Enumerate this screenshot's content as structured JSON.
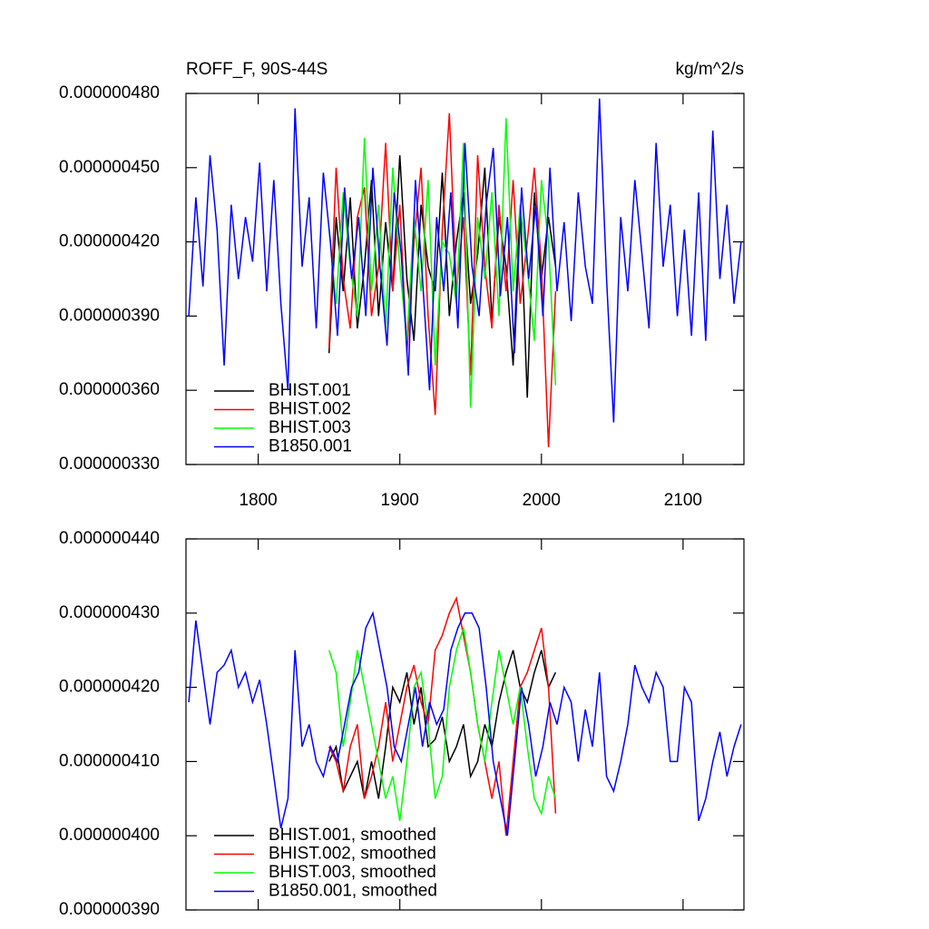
{
  "chart_data": [
    {
      "type": "line",
      "title": "ROFF_F, 90S-44S",
      "units": "kg/m^2/s",
      "legend": "lower left",
      "xtick_labels": true,
      "xlim": [
        1749,
        2143
      ],
      "ylim": [
        3.3e-07,
        4.8e-07
      ],
      "xticks": [
        1800,
        1900,
        2000,
        2100
      ],
      "yticks": [
        {
          "value": 3.3e-07,
          "label": "0.000000330"
        },
        {
          "value": 3.6e-07,
          "label": "0.000000360"
        },
        {
          "value": 3.9e-07,
          "label": "0.000000390"
        },
        {
          "value": 4.2e-07,
          "label": "0.000000420"
        },
        {
          "value": 4.5e-07,
          "label": "0.000000450"
        },
        {
          "value": 4.8e-07,
          "label": "0.000000480"
        }
      ],
      "series": [
        {
          "name": "BHIST.001",
          "color": "#000000",
          "x": [
            1850,
            1855,
            1860,
            1865,
            1870,
            1875,
            1880,
            1885,
            1890,
            1895,
            1900,
            1905,
            1910,
            1915,
            1920,
            1925,
            1930,
            1935,
            1940,
            1945,
            1950,
            1955,
            1960,
            1965,
            1970,
            1975,
            1980,
            1985,
            1990,
            1995,
            2000,
            2005,
            2010
          ],
          "values": [
            3.75e-07,
            4.3e-07,
            4e-07,
            4.38e-07,
            3.85e-07,
            4.1e-07,
            4.45e-07,
            3.9e-07,
            4.28e-07,
            4e-07,
            4.55e-07,
            4.05e-07,
            3.8e-07,
            4.35e-07,
            4.1e-07,
            4e-07,
            4.48e-07,
            3.9e-07,
            4.2e-07,
            4.4e-07,
            3.95e-07,
            4.15e-07,
            4.5e-07,
            3.88e-07,
            4.3e-07,
            4.1e-07,
            3.7e-07,
            4.35e-07,
            3.57e-07,
            4.4e-07,
            4.05e-07,
            4.3e-07,
            4.1e-07
          ]
        },
        {
          "name": "BHIST.002",
          "color": "#ff0000",
          "x": [
            1850,
            1855,
            1860,
            1865,
            1870,
            1875,
            1880,
            1885,
            1890,
            1895,
            1900,
            1905,
            1910,
            1915,
            1920,
            1925,
            1930,
            1935,
            1940,
            1945,
            1950,
            1955,
            1960,
            1965,
            1970,
            1975,
            1980,
            1985,
            1990,
            1995,
            2000,
            2005,
            2010
          ],
          "values": [
            3.77e-07,
            4.5e-07,
            4.05e-07,
            3.85e-07,
            4.3e-07,
            4.42e-07,
            3.9e-07,
            4.1e-07,
            4.6e-07,
            4e-07,
            4.35e-07,
            3.75e-07,
            4.2e-07,
            4.5e-07,
            3.9e-07,
            3.5e-07,
            4.25e-07,
            4.72e-07,
            4e-07,
            4.3e-07,
            3.66e-07,
            4.55e-07,
            4.1e-07,
            3.85e-07,
            4.35e-07,
            4e-07,
            4.45e-07,
            3.95e-07,
            4.2e-07,
            4.5e-07,
            4.1e-07,
            3.37e-07,
            4e-07
          ]
        },
        {
          "name": "BHIST.003",
          "color": "#00ff00",
          "x": [
            1850,
            1855,
            1860,
            1865,
            1870,
            1875,
            1880,
            1885,
            1890,
            1895,
            1900,
            1905,
            1910,
            1915,
            1920,
            1925,
            1930,
            1935,
            1940,
            1945,
            1950,
            1955,
            1960,
            1965,
            1970,
            1975,
            1980,
            1985,
            1990,
            1995,
            2000,
            2005,
            2010
          ],
          "values": [
            4.25e-07,
            3.95e-07,
            4.4e-07,
            4.1e-07,
            3.9e-07,
            4.62e-07,
            4e-07,
            4.35e-07,
            3.85e-07,
            4.5e-07,
            4.1e-07,
            3.8e-07,
            4.3e-07,
            4e-07,
            4.45e-07,
            3.7e-07,
            4.2e-07,
            4.15e-07,
            3.95e-07,
            4.6e-07,
            3.53e-07,
            4.3e-07,
            4.05e-07,
            4.4e-07,
            3.9e-07,
            4.7e-07,
            4e-07,
            4.35e-07,
            4.1e-07,
            3.8e-07,
            4.45e-07,
            4.2e-07,
            3.62e-07
          ]
        },
        {
          "name": "B1850.001",
          "color": "#0000ff",
          "x": [
            1751,
            1756,
            1761,
            1766,
            1771,
            1776,
            1781,
            1786,
            1791,
            1796,
            1801,
            1806,
            1811,
            1816,
            1821,
            1826,
            1831,
            1836,
            1841,
            1846,
            1851,
            1856,
            1861,
            1866,
            1871,
            1876,
            1881,
            1886,
            1891,
            1896,
            1901,
            1906,
            1911,
            1916,
            1921,
            1926,
            1931,
            1936,
            1941,
            1946,
            1951,
            1956,
            1961,
            1966,
            1971,
            1976,
            1981,
            1986,
            1991,
            1996,
            2001,
            2006,
            2011,
            2016,
            2021,
            2026,
            2031,
            2036,
            2041,
            2046,
            2051,
            2056,
            2061,
            2066,
            2071,
            2076,
            2081,
            2086,
            2091,
            2096,
            2101,
            2106,
            2111,
            2116,
            2121,
            2126,
            2131,
            2136,
            2141
          ],
          "values": [
            3.9e-07,
            4.38e-07,
            4.02e-07,
            4.55e-07,
            4.25e-07,
            3.7e-07,
            4.35e-07,
            4.05e-07,
            4.3e-07,
            4.12e-07,
            4.52e-07,
            4e-07,
            4.45e-07,
            3.95e-07,
            3.6e-07,
            4.74e-07,
            4.1e-07,
            4.38e-07,
            3.85e-07,
            4.48e-07,
            4.2e-07,
            3.82e-07,
            4.42e-07,
            4.05e-07,
            4.3e-07,
            3.9e-07,
            4.5e-07,
            4.1e-07,
            3.78e-07,
            4.4e-07,
            4.15e-07,
            3.66e-07,
            4.45e-07,
            4.05e-07,
            3.6e-07,
            4.3e-07,
            4e-07,
            4.4e-07,
            3.85e-07,
            4.6e-07,
            4.1e-07,
            3.9e-07,
            4.35e-07,
            4.58e-07,
            3.98e-07,
            4.3e-07,
            3.75e-07,
            4.42e-07,
            4.05e-07,
            4.35e-07,
            3.9e-07,
            4.5e-07,
            4e-07,
            4.28e-07,
            3.88e-07,
            4.4e-07,
            4.1e-07,
            3.95e-07,
            4.78e-07,
            4.05e-07,
            3.47e-07,
            4.3e-07,
            4e-07,
            4.45e-07,
            4.15e-07,
            3.85e-07,
            4.6e-07,
            4.1e-07,
            4.35e-07,
            3.9e-07,
            4.25e-07,
            3.82e-07,
            4.4e-07,
            3.8e-07,
            4.65e-07,
            4.05e-07,
            4.35e-07,
            3.95e-07,
            4.2e-07
          ]
        }
      ]
    },
    {
      "type": "line",
      "legend": "lower left",
      "xtick_labels": false,
      "xlim": [
        1749,
        2143
      ],
      "ylim": [
        3.9e-07,
        4.4e-07
      ],
      "xticks": [
        1800,
        1900,
        2000,
        2100
      ],
      "yticks": [
        {
          "value": 3.9e-07,
          "label": "0.000000390"
        },
        {
          "value": 4e-07,
          "label": "0.000000400"
        },
        {
          "value": 4.1e-07,
          "label": "0.000000410"
        },
        {
          "value": 4.2e-07,
          "label": "0.000000420"
        },
        {
          "value": 4.3e-07,
          "label": "0.000000430"
        },
        {
          "value": 4.4e-07,
          "label": "0.000000440"
        }
      ],
      "series": [
        {
          "name": "BHIST.001, smoothed",
          "color": "#000000",
          "x": [
            1850,
            1855,
            1860,
            1865,
            1870,
            1875,
            1880,
            1885,
            1890,
            1895,
            1900,
            1905,
            1910,
            1915,
            1920,
            1925,
            1930,
            1935,
            1940,
            1945,
            1950,
            1955,
            1960,
            1965,
            1970,
            1975,
            1980,
            1985,
            1990,
            1995,
            2000,
            2005,
            2010
          ],
          "values": [
            4.1e-07,
            4.12e-07,
            4.06e-07,
            4.08e-07,
            4.1e-07,
            4.05e-07,
            4.1e-07,
            4.05e-07,
            4.12e-07,
            4.2e-07,
            4.18e-07,
            4.22e-07,
            4.15e-07,
            4.2e-07,
            4.12e-07,
            4.13e-07,
            4.16e-07,
            4.1e-07,
            4.12e-07,
            4.15e-07,
            4.08e-07,
            4.1e-07,
            4.15e-07,
            4.12e-07,
            4.18e-07,
            4.22e-07,
            4.25e-07,
            4.2e-07,
            4.18e-07,
            4.22e-07,
            4.25e-07,
            4.2e-07,
            4.22e-07
          ]
        },
        {
          "name": "BHIST.002, smoothed",
          "color": "#ff0000",
          "x": [
            1850,
            1855,
            1860,
            1865,
            1870,
            1875,
            1880,
            1885,
            1890,
            1895,
            1900,
            1905,
            1910,
            1915,
            1920,
            1925,
            1930,
            1935,
            1940,
            1945,
            1950,
            1955,
            1960,
            1965,
            1970,
            1975,
            1980,
            1985,
            1990,
            1995,
            2000,
            2005,
            2010
          ],
          "values": [
            4.12e-07,
            4.1e-07,
            4.06e-07,
            4.12e-07,
            4.15e-07,
            4.05e-07,
            4.08e-07,
            4.12e-07,
            4.18e-07,
            4.1e-07,
            4.15e-07,
            4.2e-07,
            4.23e-07,
            4.18e-07,
            4.15e-07,
            4.25e-07,
            4.27e-07,
            4.3e-07,
            4.32e-07,
            4.27e-07,
            4.22e-07,
            4.15e-07,
            4.1e-07,
            4.05e-07,
            4.1e-07,
            4e-07,
            4.1e-07,
            4.2e-07,
            4.22e-07,
            4.25e-07,
            4.28e-07,
            4.2e-07,
            4.03e-07
          ]
        },
        {
          "name": "BHIST.003, smoothed",
          "color": "#00ff00",
          "x": [
            1850,
            1855,
            1860,
            1865,
            1870,
            1875,
            1880,
            1885,
            1890,
            1895,
            1900,
            1905,
            1910,
            1915,
            1920,
            1925,
            1930,
            1935,
            1940,
            1945,
            1950,
            1955,
            1960,
            1965,
            1970,
            1975,
            1980,
            1985,
            1990,
            1995,
            2000,
            2005,
            2010
          ],
          "values": [
            4.25e-07,
            4.22e-07,
            4.12e-07,
            4.18e-07,
            4.25e-07,
            4.2e-07,
            4.15e-07,
            4.1e-07,
            4.05e-07,
            4.08e-07,
            4.02e-07,
            4.1e-07,
            4.2e-07,
            4.22e-07,
            4.15e-07,
            4.05e-07,
            4.08e-07,
            4.2e-07,
            4.25e-07,
            4.28e-07,
            4.22e-07,
            4.15e-07,
            4.1e-07,
            4.18e-07,
            4.25e-07,
            4.2e-07,
            4.15e-07,
            4.2e-07,
            4.12e-07,
            4.05e-07,
            4.03e-07,
            4.08e-07,
            4.05e-07
          ]
        },
        {
          "name": "B1850.001, smoothed",
          "color": "#0000ff",
          "x": [
            1751,
            1756,
            1761,
            1766,
            1771,
            1776,
            1781,
            1786,
            1791,
            1796,
            1801,
            1806,
            1811,
            1816,
            1821,
            1826,
            1831,
            1836,
            1841,
            1846,
            1851,
            1856,
            1861,
            1866,
            1871,
            1876,
            1881,
            1886,
            1891,
            1896,
            1901,
            1906,
            1911,
            1916,
            1921,
            1926,
            1931,
            1936,
            1941,
            1946,
            1951,
            1956,
            1961,
            1966,
            1971,
            1976,
            1981,
            1986,
            1991,
            1996,
            2001,
            2006,
            2011,
            2016,
            2021,
            2026,
            2031,
            2036,
            2041,
            2046,
            2051,
            2056,
            2061,
            2066,
            2071,
            2076,
            2081,
            2086,
            2091,
            2096,
            2101,
            2106,
            2111,
            2116,
            2121,
            2126,
            2131,
            2136,
            2141
          ],
          "values": [
            4.18e-07,
            4.29e-07,
            4.22e-07,
            4.15e-07,
            4.22e-07,
            4.23e-07,
            4.25e-07,
            4.2e-07,
            4.22e-07,
            4.18e-07,
            4.21e-07,
            4.15e-07,
            4.08e-07,
            4.01e-07,
            4.05e-07,
            4.25e-07,
            4.12e-07,
            4.15e-07,
            4.1e-07,
            4.08e-07,
            4.12e-07,
            4.1e-07,
            4.15e-07,
            4.2e-07,
            4.22e-07,
            4.28e-07,
            4.3e-07,
            4.25e-07,
            4.2e-07,
            4.12e-07,
            4.1e-07,
            4.15e-07,
            4.2e-07,
            4.12e-07,
            4.18e-07,
            4.15e-07,
            4.17e-07,
            4.25e-07,
            4.28e-07,
            4.3e-07,
            4.3e-07,
            4.28e-07,
            4.2e-07,
            4.1e-07,
            4.05e-07,
            4e-07,
            4.1e-07,
            4.2e-07,
            4.15e-07,
            4.08e-07,
            4.12e-07,
            4.18e-07,
            4.15e-07,
            4.2e-07,
            4.18e-07,
            4.1e-07,
            4.17e-07,
            4.12e-07,
            4.22e-07,
            4.08e-07,
            4.06e-07,
            4.1e-07,
            4.15e-07,
            4.23e-07,
            4.2e-07,
            4.18e-07,
            4.22e-07,
            4.2e-07,
            4.1e-07,
            4.1e-07,
            4.2e-07,
            4.18e-07,
            4.02e-07,
            4.05e-07,
            4.1e-07,
            4.14e-07,
            4.08e-07,
            4.12e-07,
            4.15e-07
          ]
        }
      ]
    }
  ]
}
